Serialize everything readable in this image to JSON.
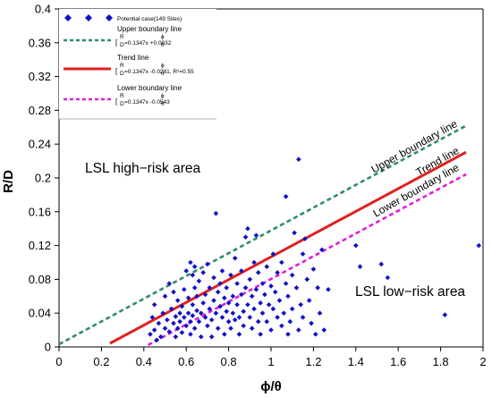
{
  "chart_data": {
    "type": "scatter",
    "xlabel": "ϕ/θ",
    "ylabel": "R/D",
    "xlim": [
      0,
      2
    ],
    "ylim": [
      0,
      0.4
    ],
    "x_ticks": [
      "0",
      "0.2",
      "0.4",
      "0.6",
      "0.8",
      "1",
      "1.2",
      "1.4",
      "1.6",
      "1.8",
      "2"
    ],
    "y_ticks": [
      "0",
      "0.04",
      "0.08",
      "0.12",
      "0.16",
      "0.2",
      "0.24",
      "0.28",
      "0.32",
      "0.36",
      "0.4"
    ],
    "grid": false,
    "legend_position": "top-left",
    "series": [
      {
        "name": "Potential case(149 Sites)",
        "kind": "scatter",
        "marker": "diamond",
        "color": "#1010c8",
        "points": [
          [
            0.43,
            0.015
          ],
          [
            0.44,
            0.035
          ],
          [
            0.45,
            0.05
          ],
          [
            0.45,
            0.02
          ],
          [
            0.46,
            0.008
          ],
          [
            0.47,
            0.028
          ],
          [
            0.48,
            0.012
          ],
          [
            0.49,
            0.04
          ],
          [
            0.5,
            0.022
          ],
          [
            0.5,
            0.06
          ],
          [
            0.51,
            0.032
          ],
          [
            0.52,
            0.018
          ],
          [
            0.52,
            0.075
          ],
          [
            0.53,
            0.045
          ],
          [
            0.54,
            0.028
          ],
          [
            0.54,
            0.065
          ],
          [
            0.55,
            0.036
          ],
          [
            0.55,
            0.012
          ],
          [
            0.56,
            0.022
          ],
          [
            0.56,
            0.055
          ],
          [
            0.57,
            0.04
          ],
          [
            0.57,
            0.03
          ],
          [
            0.58,
            0.048
          ],
          [
            0.58,
            0.017
          ],
          [
            0.59,
            0.035
          ],
          [
            0.59,
            0.068
          ],
          [
            0.6,
            0.025
          ],
          [
            0.6,
            0.09
          ],
          [
            0.61,
            0.04
          ],
          [
            0.61,
            0.058
          ],
          [
            0.62,
            0.1
          ],
          [
            0.62,
            0.03
          ],
          [
            0.62,
            0.015
          ],
          [
            0.63,
            0.05
          ],
          [
            0.63,
            0.085
          ],
          [
            0.63,
            0.037
          ],
          [
            0.64,
            0.07
          ],
          [
            0.64,
            0.022
          ],
          [
            0.64,
            0.095
          ],
          [
            0.65,
            0.043
          ],
          [
            0.65,
            0.06
          ],
          [
            0.66,
            0.03
          ],
          [
            0.66,
            0.078
          ],
          [
            0.67,
            0.04
          ],
          [
            0.67,
            0.012
          ],
          [
            0.68,
            0.052
          ],
          [
            0.68,
            0.088
          ],
          [
            0.69,
            0.035
          ],
          [
            0.69,
            0.062
          ],
          [
            0.7,
            0.025
          ],
          [
            0.7,
            0.098
          ],
          [
            0.71,
            0.045
          ],
          [
            0.71,
            0.07
          ],
          [
            0.72,
            0.032
          ],
          [
            0.72,
            0.012
          ],
          [
            0.73,
            0.055
          ],
          [
            0.73,
            0.082
          ],
          [
            0.74,
            0.158
          ],
          [
            0.74,
            0.04
          ],
          [
            0.75,
            0.065
          ],
          [
            0.75,
            0.022
          ],
          [
            0.76,
            0.075
          ],
          [
            0.76,
            0.048
          ],
          [
            0.77,
            0.035
          ],
          [
            0.77,
            0.09
          ],
          [
            0.78,
            0.058
          ],
          [
            0.78,
            0.015
          ],
          [
            0.79,
            0.042
          ],
          [
            0.79,
            0.07
          ],
          [
            0.8,
            0.03
          ],
          [
            0.8,
            0.052
          ],
          [
            0.81,
            0.085
          ],
          [
            0.81,
            0.022
          ],
          [
            0.82,
            0.06
          ],
          [
            0.82,
            0.04
          ],
          [
            0.83,
            0.032
          ],
          [
            0.83,
            0.105
          ],
          [
            0.84,
            0.05
          ],
          [
            0.84,
            0.075
          ],
          [
            0.85,
            0.035
          ],
          [
            0.85,
            0.015
          ],
          [
            0.86,
            0.062
          ],
          [
            0.86,
            0.09
          ],
          [
            0.87,
            0.042
          ],
          [
            0.87,
            0.025
          ],
          [
            0.88,
            0.07
          ],
          [
            0.88,
            0.13
          ],
          [
            0.89,
            0.05
          ],
          [
            0.89,
            0.14
          ],
          [
            0.9,
            0.035
          ],
          [
            0.9,
            0.08
          ],
          [
            0.91,
            0.06
          ],
          [
            0.91,
            0.022
          ],
          [
            0.92,
            0.1
          ],
          [
            0.92,
            0.045
          ],
          [
            0.93,
            0.132
          ],
          [
            0.93,
            0.068
          ],
          [
            0.94,
            0.03
          ],
          [
            0.94,
            0.088
          ],
          [
            0.95,
            0.052
          ],
          [
            0.95,
            0.015
          ],
          [
            0.96,
            0.075
          ],
          [
            0.96,
            0.04
          ],
          [
            0.97,
            0.062
          ],
          [
            0.98,
            0.095
          ],
          [
            0.98,
            0.03
          ],
          [
            0.99,
            0.05
          ],
          [
            1.0,
            0.072
          ],
          [
            1.0,
            0.02
          ],
          [
            1.01,
            0.045
          ],
          [
            1.01,
            0.11
          ],
          [
            1.02,
            0.065
          ],
          [
            1.03,
            0.035
          ],
          [
            1.03,
            0.088
          ],
          [
            1.04,
            0.055
          ],
          [
            1.05,
            0.025
          ],
          [
            1.05,
            0.1
          ],
          [
            1.06,
            0.04
          ],
          [
            1.07,
            0.178
          ],
          [
            1.07,
            0.075
          ],
          [
            1.08,
            0.015
          ],
          [
            1.08,
            0.06
          ],
          [
            1.09,
            0.03
          ],
          [
            1.1,
            0.085
          ],
          [
            1.1,
            0.045
          ],
          [
            1.11,
            0.135
          ],
          [
            1.12,
            0.07
          ],
          [
            1.13,
            0.222
          ],
          [
            1.13,
            0.02
          ],
          [
            1.14,
            0.05
          ],
          [
            1.15,
            0.11
          ],
          [
            1.15,
            0.035
          ],
          [
            1.16,
            0.128
          ],
          [
            1.17,
            0.08
          ],
          [
            1.18,
            0.055
          ],
          [
            1.19,
            0.028
          ],
          [
            1.2,
            0.092
          ],
          [
            1.21,
            0.015
          ],
          [
            1.22,
            0.07
          ],
          [
            1.23,
            0.04
          ],
          [
            1.24,
            0.115
          ],
          [
            1.25,
            0.02
          ],
          [
            1.27,
            0.068
          ],
          [
            1.4,
            0.12
          ],
          [
            1.42,
            0.095
          ],
          [
            1.52,
            0.098
          ],
          [
            1.55,
            0.082
          ],
          [
            1.82,
            0.038
          ],
          [
            1.98,
            0.12
          ]
        ]
      },
      {
        "name": "Upper boundary line",
        "kind": "line",
        "style": "dashed",
        "color": "#2e8b6e",
        "equation_text": "=0.1347x +0.0032",
        "x": [
          0,
          1.92
        ],
        "y": [
          0.0032,
          0.2618
        ]
      },
      {
        "name": "Trend line",
        "kind": "line",
        "style": "solid",
        "color": "#e02020",
        "equation_text": "=0.1347x -0.0281, R²=0.55",
        "x": [
          0.24,
          1.92
        ],
        "y": [
          0.0042,
          0.2305
        ]
      },
      {
        "name": "Lower boundary line",
        "kind": "line",
        "style": "dashed",
        "color": "#e020d8",
        "equation_text": "=0.1347x -0.0543",
        "x": [
          0.42,
          1.92
        ],
        "y": [
          0.0023,
          0.2043
        ]
      }
    ],
    "annotations": {
      "high_risk": "LSL high−risk area",
      "low_risk": "LSL low−risk area",
      "upper_label": "Upper boundary line",
      "trend_label": "Trend line",
      "lower_label": "Lower boundary line"
    },
    "legend_symbols": {
      "R": "R",
      "D": "D",
      "phi": "ϕ",
      "theta": "θ",
      "open_bracket": "["
    }
  }
}
